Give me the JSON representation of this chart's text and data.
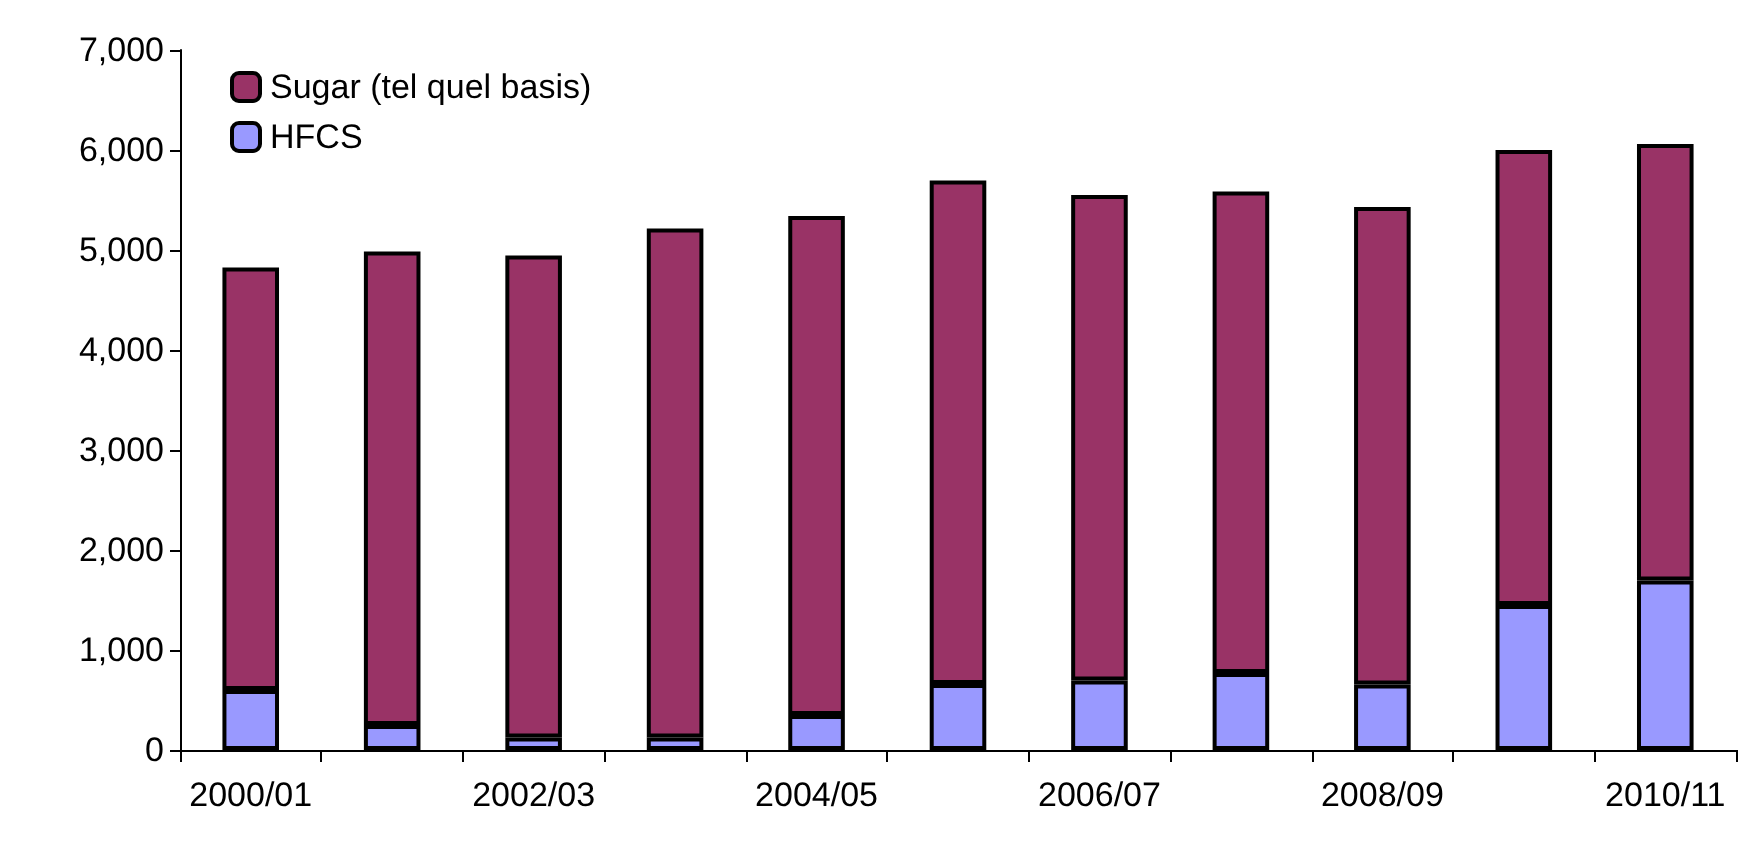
{
  "chart_data": {
    "type": "bar",
    "stacked": true,
    "categories": [
      "2000/01",
      null,
      "2002/03",
      null,
      "2004/05",
      null,
      "2006/07",
      null,
      "2008/09",
      null,
      "2010/11"
    ],
    "series": [
      {
        "name": "HFCS",
        "color": "#9999ff",
        "values": [
          600,
          250,
          125,
          125,
          350,
          660,
          695,
          770,
          655,
          1450,
          1695
        ]
      },
      {
        "name": "Sugar (tel quel basis)",
        "color": "#993366",
        "values": [
          4225,
          4735,
          4820,
          5090,
          4990,
          5035,
          4855,
          4815,
          4775,
          4550,
          4365
        ]
      }
    ],
    "ylim": [
      0,
      7000
    ],
    "yticks": [
      {
        "value": 0,
        "label": "0"
      },
      {
        "value": 1000,
        "label": "1,000"
      },
      {
        "value": 2000,
        "label": "2,000"
      },
      {
        "value": 3000,
        "label": "3,000"
      },
      {
        "value": 4000,
        "label": "4,000"
      },
      {
        "value": 5000,
        "label": "5,000"
      },
      {
        "value": 6000,
        "label": "6,000"
      },
      {
        "value": 7000,
        "label": "7,000"
      }
    ],
    "grid": false,
    "legend": "top left"
  }
}
